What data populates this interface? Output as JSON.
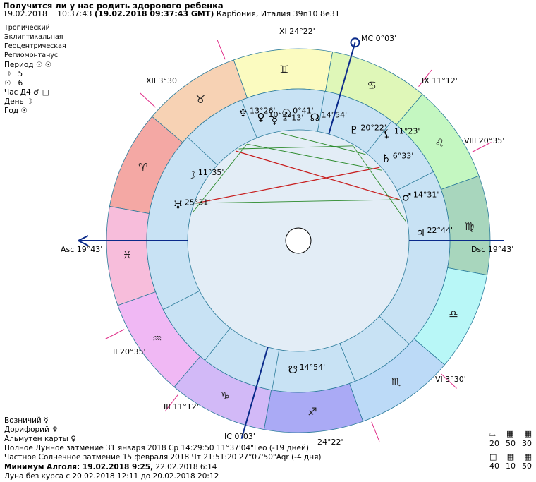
{
  "header": {
    "title": "Получится ли у нас родить здорового ребенка",
    "date": "19.02.2018",
    "time": "10:37:43",
    "gmt": "(19.02.2018  09:37:43 GMT)",
    "location": "Карбония, Италия 39n10  8e31"
  },
  "settings": {
    "zodiac": "Тропический",
    "coords": "Эклиптикальная",
    "center": "Геоцентрическая",
    "houses": "Региомонтанус",
    "period_label": "Период",
    "moon_value": "5",
    "sun_value": "6",
    "hour_label": "Час Д4",
    "day_label": "День",
    "year_label": "Год"
  },
  "chart": {
    "cusps": {
      "xi": "XI 24°22'",
      "mc": "MC 0°03'",
      "xii": "XII 3°30'",
      "ix": "IX 11°12'",
      "viii": "VIII 20°35'",
      "asc": "Asc 19°43'",
      "dsc": "Dsc 19°43'",
      "ii": "II 20°35'",
      "iii": "III 11°12'",
      "ic": "IC 0°03'",
      "iv_deg": "24°22'",
      "vi": "VI 3°30'"
    },
    "planet_labels": {
      "neptune": "13°26'",
      "venus": "10°33'",
      "mercury": "2°13'",
      "sun": "0°41'",
      "north_node": "14°54'",
      "pluto": "20°22'",
      "lilith": "11°23'",
      "saturn": "6°33'",
      "moon": "11°35'",
      "uranus": "25°31'",
      "mars": "14°31'",
      "jupiter": "22°44'",
      "south_node": "14°54'"
    }
  },
  "footer": {
    "vozniichy": "Возничий",
    "doriforiy": "Дорифорий",
    "almuten": "Альмутен карты",
    "lunar_eclipse": "Полное Лунное затмение 31 января 2018 Ср 14:29:50 11°37'04\"Leo (-19 дней)",
    "solar_eclipse": "Частное Солнечное затмение 15 февраля 2018 Чт 21:51:20 27°07'50\"Aqr (-4 дня)",
    "algol": "Минимум Алголя: 19.02.2018  9:25,",
    "algol2": "22.02.2018  6:14",
    "void_moon": "Луна без курса с 20.02.2018 12:11 до 20.02.2018 20:12"
  },
  "legend": {
    "row1": [
      "20",
      "50",
      "30"
    ],
    "row2": [
      "40",
      "10",
      "50"
    ]
  },
  "colors": {
    "aries": "#f4a8a4",
    "taurus": "#f7d2b4",
    "gemini": "#fbfbc0",
    "cancer": "#dff7b8",
    "leo": "#c4f7c1",
    "virgo": "#a8d6bd",
    "libra": "#b8f7f7",
    "scorpio": "#bcdaf7",
    "sagittarius": "#aaaaf5",
    "capricorn": "#d2b9f7",
    "aquarius": "#f0b8f4",
    "pisces": "#f7bddb",
    "house_ring": "#c8e2f4",
    "inner_disc": "#e3edf6",
    "axis": "#0a2a8a",
    "cusp_line": "#e0308a"
  }
}
